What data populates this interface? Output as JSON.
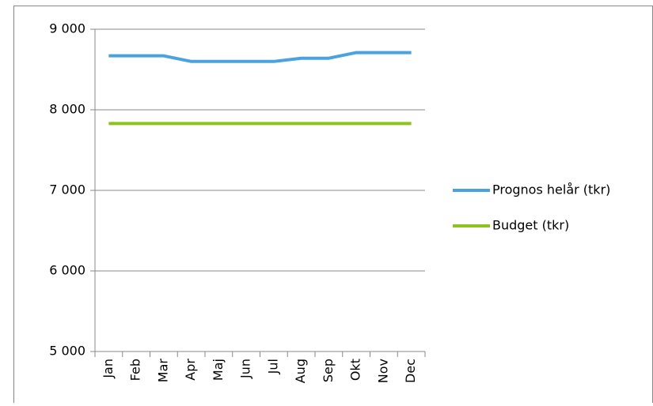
{
  "chart_data": {
    "type": "line",
    "categories": [
      "Jan",
      "Feb",
      "Mar",
      "Apr",
      "Maj",
      "Jun",
      "Jul",
      "Aug",
      "Sep",
      "Okt",
      "Nov",
      "Dec"
    ],
    "series": [
      {
        "name": "Prognos helår (tkr)",
        "color": "#4aa3df",
        "values": [
          8670,
          8670,
          8670,
          8600,
          8600,
          8600,
          8600,
          8640,
          8640,
          8710,
          8710,
          8710
        ]
      },
      {
        "name": "Budget (tkr)",
        "color": "#8dc21f",
        "values": [
          7830,
          7830,
          7830,
          7830,
          7830,
          7830,
          7830,
          7830,
          7830,
          7830,
          7830,
          7830
        ]
      }
    ],
    "ylim": [
      5000,
      9000
    ],
    "yticks": [
      {
        "value": 5000,
        "label": "5 000"
      },
      {
        "value": 6000,
        "label": "6 000"
      },
      {
        "value": 7000,
        "label": "7 000"
      },
      {
        "value": 8000,
        "label": "8 000"
      },
      {
        "value": 9000,
        "label": "9 000"
      }
    ],
    "grid": true,
    "legend": "right"
  }
}
